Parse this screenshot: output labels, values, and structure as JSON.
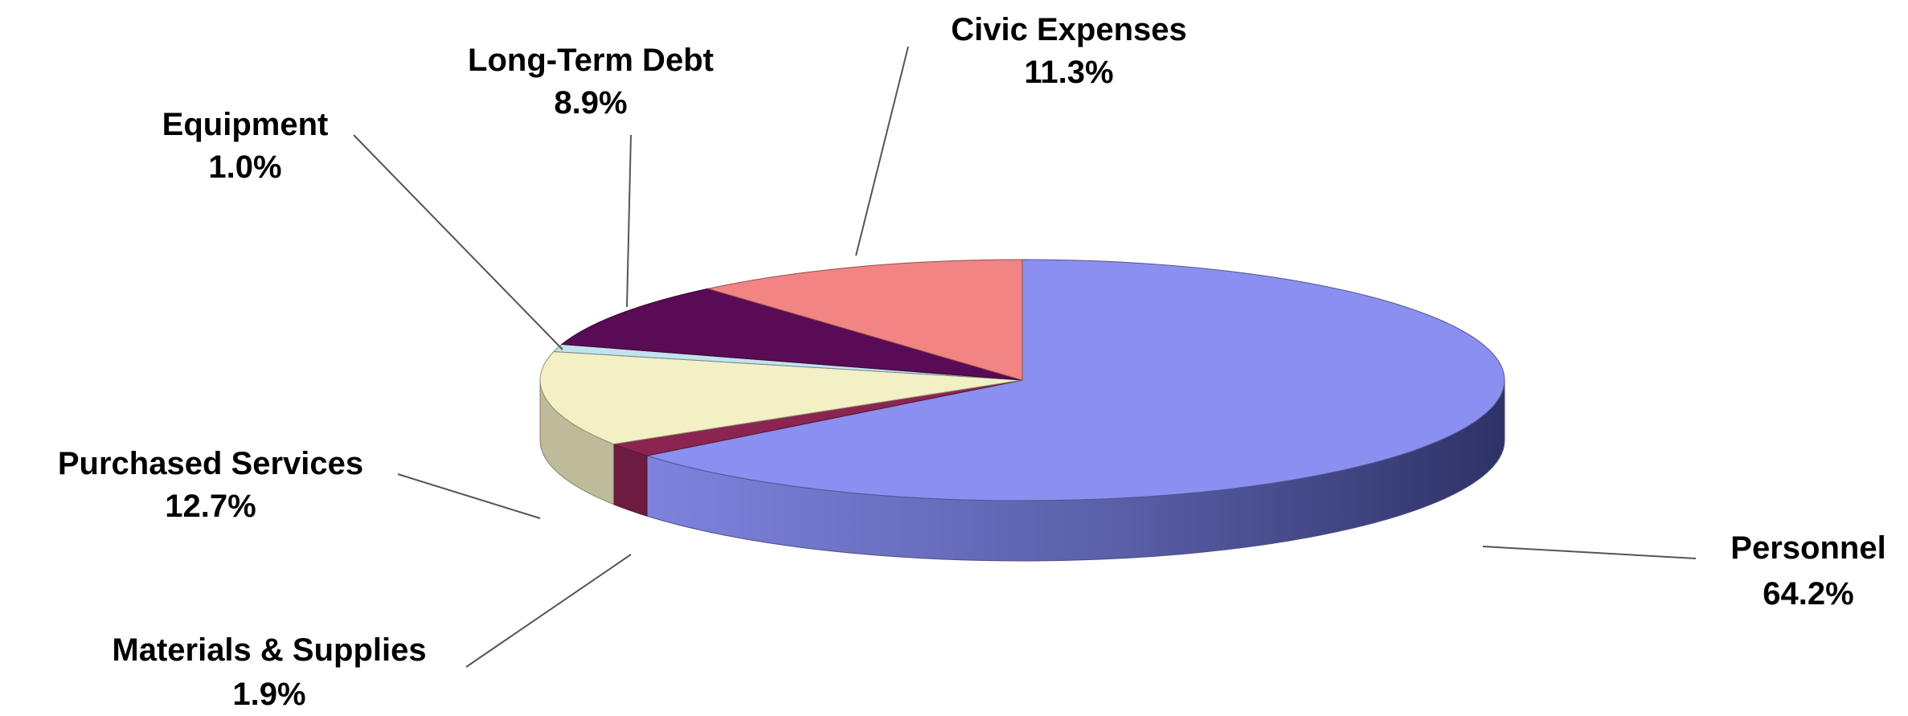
{
  "chart_data": {
    "type": "pie",
    "style": "3d",
    "title": "",
    "legend": "none",
    "slices": [
      {
        "name": "Personnel",
        "value": 64.2,
        "label": "64.2%",
        "color": "#8a8ff0"
      },
      {
        "name": "Materials & Supplies",
        "value": 1.9,
        "label": "1.9%",
        "color": "#8c2452"
      },
      {
        "name": "Purchased Services",
        "value": 12.7,
        "label": "12.7%",
        "color": "#f2f0c4"
      },
      {
        "name": "Equipment",
        "value": 1.0,
        "label": "1.0%",
        "color": "#c2e2ee"
      },
      {
        "name": "Long-Term Debt",
        "value": 8.9,
        "label": "8.9%",
        "color": "#5a0b55"
      },
      {
        "name": "Civic Expenses",
        "value": 11.3,
        "label": "11.3%",
        "color": "#f28484"
      }
    ]
  }
}
